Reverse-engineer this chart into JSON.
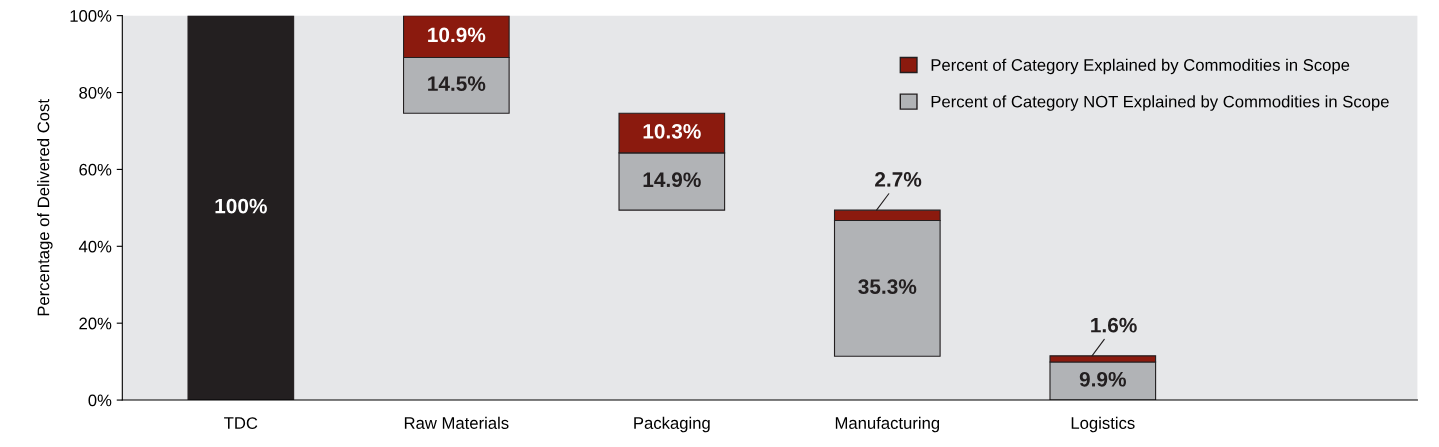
{
  "chart_data": {
    "type": "bar",
    "ylabel": "Percentage of Delivered Cost",
    "categories": [
      "TDC",
      "Raw Materials",
      "Packaging",
      "Manufacturing",
      "Logistics"
    ],
    "series": [
      {
        "color": "#231f20",
        "values": [
          100,
          null,
          null,
          null,
          null
        ],
        "value_labels": [
          "100%",
          null,
          null,
          null,
          null
        ]
      },
      {
        "name": "Percent of Category NOT Explained by Commodities in Scope",
        "color": "#b1b3b6",
        "base": [
          null,
          74.6,
          49.4,
          11.4,
          0
        ],
        "values": [
          null,
          14.5,
          14.9,
          35.3,
          9.9
        ],
        "value_labels": [
          null,
          "14.5%",
          "14.9%",
          "35.3%",
          "9.9%"
        ]
      },
      {
        "name": "Percent of Category Explained by Commodities in Scope",
        "color": "#8b1a0e",
        "base": [
          null,
          89.1,
          64.3,
          46.7,
          9.9
        ],
        "values": [
          null,
          10.9,
          10.3,
          2.7,
          1.6
        ],
        "value_labels": [
          null,
          "10.9%",
          "10.3%",
          "2.7%",
          "1.6%"
        ]
      }
    ],
    "ylim": [
      0,
      100
    ],
    "yticks": [
      {
        "value": 0,
        "label": "0%"
      },
      {
        "value": 20,
        "label": "20%"
      },
      {
        "value": 40,
        "label": "40%"
      },
      {
        "value": 60,
        "label": "60%"
      },
      {
        "value": 80,
        "label": "80%"
      },
      {
        "value": 100,
        "label": "100%"
      }
    ],
    "legend": "top right",
    "grid": false
  }
}
